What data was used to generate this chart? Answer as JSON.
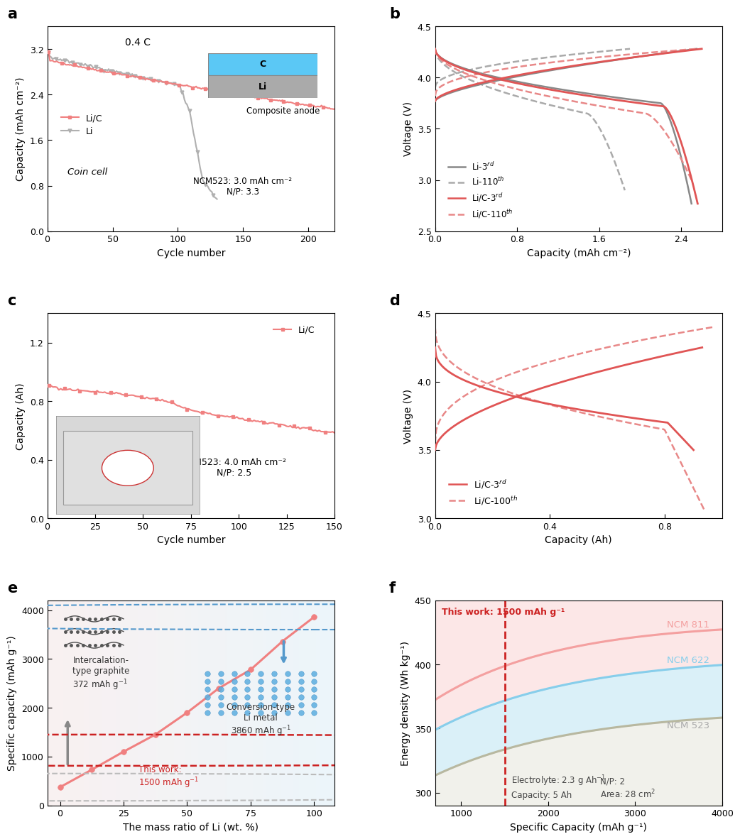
{
  "fig_width": 10.8,
  "fig_height": 11.93,
  "colors": {
    "lic_pink": "#F08080",
    "li_gray": "#B0B0B0",
    "li3rd_gray": "#888888",
    "lic3rd_red": "#E05555",
    "gray_dashed": "#AAAAAA",
    "red_dashed": "#E88888",
    "ncm811_pink": "#F4A0A0",
    "ncm622_blue": "#87CEEB",
    "ncm523_tan": "#C8C8B0",
    "bg_blue": "#EAF4FB",
    "bg_pink": "#FBF0F0"
  },
  "panel_a": {
    "xlabel": "Cycle number",
    "ylabel": "Capacity (mAh cm⁻²)",
    "xlim": [
      0,
      220
    ],
    "ylim": [
      0.0,
      3.6
    ],
    "yticks": [
      0.0,
      0.8,
      1.6,
      2.4,
      3.2
    ],
    "xticks": [
      0,
      50,
      100,
      150,
      200
    ],
    "text_04C": "0.4 C",
    "text_ncm": "NCM523: 3.0 mAh cm⁻²\nN/P: 3.3",
    "text_coin": "Coin cell"
  },
  "panel_b": {
    "xlabel": "Capacity (mAh cm⁻²)",
    "ylabel": "Voltage (V)",
    "xlim": [
      0.0,
      2.8
    ],
    "ylim": [
      2.5,
      4.5
    ],
    "xticks": [
      0.0,
      0.8,
      1.6,
      2.4
    ],
    "yticks": [
      2.5,
      3.0,
      3.5,
      4.0,
      4.5
    ]
  },
  "panel_c": {
    "xlabel": "Cycle number",
    "ylabel": "Capacity (Ah)",
    "xlim": [
      0,
      150
    ],
    "ylim": [
      0.0,
      1.4
    ],
    "yticks": [
      0.0,
      0.4,
      0.8,
      1.2
    ],
    "xticks": [
      0,
      25,
      50,
      75,
      100,
      125,
      150
    ],
    "text_ncm": "NCM523: 4.0 mAh cm⁻²\nN/P: 2.5"
  },
  "panel_d": {
    "xlabel": "Capacity (Ah)",
    "ylabel": "Voltage (V)",
    "xlim": [
      0.0,
      1.0
    ],
    "ylim": [
      3.0,
      4.5
    ],
    "xticks": [
      0.0,
      0.4,
      0.8
    ],
    "yticks": [
      3.0,
      3.5,
      4.0,
      4.5
    ]
  },
  "panel_e": {
    "xlabel": "The mass ratio of Li (wt. %)",
    "ylabel": "Specific capacity (mAh g⁻¹)",
    "xlim": [
      -5,
      108
    ],
    "ylim": [
      0,
      4200
    ],
    "xticks": [
      0,
      25,
      50,
      75,
      100
    ],
    "yticks": [
      0,
      1000,
      2000,
      3000,
      4000
    ],
    "points_x": [
      0,
      12.5,
      25,
      37.5,
      50,
      62.5,
      75,
      87.5,
      100
    ],
    "points_y": [
      372,
      730,
      1100,
      1450,
      1900,
      2400,
      2780,
      3360,
      3860
    ],
    "thiswork_x": 29,
    "thiswork_y": 1130
  },
  "panel_f": {
    "xlabel": "Specific Capacity (mAh g⁻¹)",
    "ylabel": "Energy density (Wh kg⁻¹)",
    "xlim": [
      700,
      4000
    ],
    "ylim": [
      290,
      450
    ],
    "xticks": [
      1000,
      2000,
      3000,
      4000
    ],
    "yticks": [
      300,
      350,
      400,
      450
    ],
    "dashed_x": 1500,
    "text_thiswork": "This work: 1500 mAh g⁻¹"
  }
}
